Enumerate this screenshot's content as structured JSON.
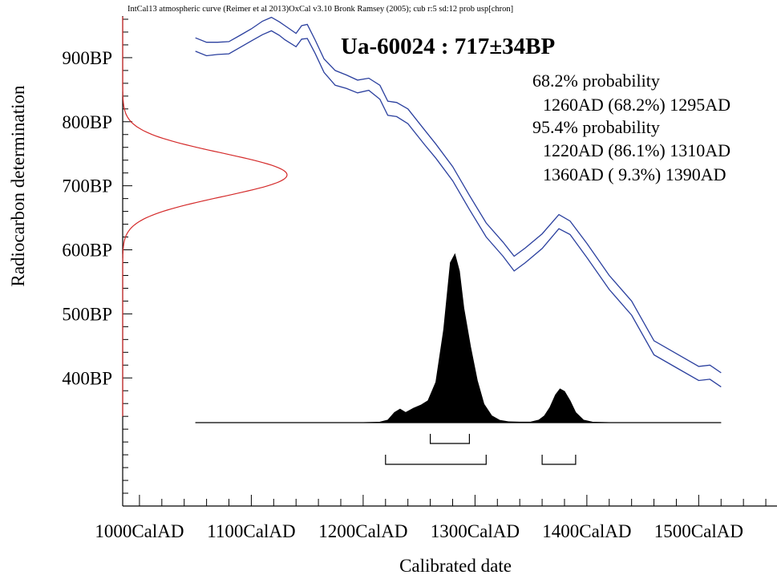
{
  "chart_data": {
    "type": "line",
    "header": "IntCal13 atmospheric curve (Reimer et al 2013)OxCal v3.10 Bronk Ramsey (2005); cub r:5 sd:12 prob usp[chron]",
    "title": "Ua-60024 : 717±34BP",
    "xlabel": "Calibrated date",
    "ylabel": "Radiocarbon determination",
    "x_ticks": [
      "1000CalAD",
      "1100CalAD",
      "1200CalAD",
      "1300CalAD",
      "1400CalAD",
      "1500CalAD"
    ],
    "y_ticks": [
      "900BP",
      "800BP",
      "700BP",
      "600BP",
      "500BP",
      "400BP"
    ],
    "xlim": [
      985,
      1570
    ],
    "ylim": [
      200,
      965
    ],
    "annotations": [
      "68.2% probability",
      "1260AD (68.2%) 1295AD",
      "95.4% probability",
      "1220AD (86.1%) 1310AD",
      "1360AD ( 9.3%) 1390AD"
    ],
    "calibration_curve": {
      "color": "#2a3f9e",
      "x": [
        1050,
        1060,
        1070,
        1080,
        1090,
        1100,
        1110,
        1118,
        1125,
        1130,
        1140,
        1145,
        1150,
        1157,
        1165,
        1175,
        1185,
        1195,
        1205,
        1215,
        1222,
        1230,
        1240,
        1255,
        1265,
        1280,
        1295,
        1310,
        1325,
        1335,
        1345,
        1360,
        1375,
        1385,
        1400,
        1420,
        1440,
        1460,
        1480,
        1500,
        1510,
        1520
      ],
      "upper": [
        931,
        924,
        924,
        925,
        935,
        945,
        957,
        963,
        956,
        950,
        938,
        950,
        952,
        928,
        898,
        880,
        873,
        865,
        868,
        857,
        832,
        830,
        820,
        787,
        765,
        730,
        685,
        642,
        612,
        590,
        603,
        625,
        655,
        645,
        610,
        560,
        520,
        458,
        438,
        418,
        420,
        408
      ],
      "lower": [
        910,
        903,
        905,
        906,
        916,
        926,
        936,
        942,
        935,
        928,
        917,
        929,
        930,
        907,
        877,
        857,
        852,
        845,
        849,
        835,
        810,
        808,
        797,
        764,
        743,
        708,
        663,
        620,
        590,
        567,
        580,
        602,
        633,
        624,
        588,
        538,
        498,
        436,
        416,
        396,
        398,
        386
      ]
    },
    "measurement_distribution": {
      "color": "#d42a2a",
      "mean": 717,
      "sd": 34
    },
    "posterior_distribution": {
      "color": "#000000",
      "x": [
        1050,
        1200,
        1215,
        1222,
        1228,
        1233,
        1238,
        1245,
        1252,
        1258,
        1265,
        1272,
        1278,
        1282,
        1286,
        1290,
        1296,
        1302,
        1308,
        1315,
        1322,
        1330,
        1340,
        1350,
        1357,
        1362,
        1367,
        1372,
        1376,
        1380,
        1385,
        1390,
        1397,
        1405,
        1420,
        1520
      ],
      "y": [
        0,
        0,
        0.003,
        0.015,
        0.06,
        0.08,
        0.06,
        0.085,
        0.105,
        0.13,
        0.24,
        0.55,
        0.95,
        1.0,
        0.9,
        0.68,
        0.45,
        0.25,
        0.11,
        0.04,
        0.014,
        0.005,
        0.003,
        0.004,
        0.015,
        0.04,
        0.09,
        0.165,
        0.2,
        0.185,
        0.13,
        0.06,
        0.015,
        0.003,
        0,
        0
      ]
    },
    "ranges": [
      {
        "level": "68.2%",
        "from": 1260,
        "to": 1295
      },
      {
        "level": "95.4%",
        "from": 1220,
        "to": 1310
      },
      {
        "level": "95.4%",
        "from": 1360,
        "to": 1390
      }
    ]
  }
}
